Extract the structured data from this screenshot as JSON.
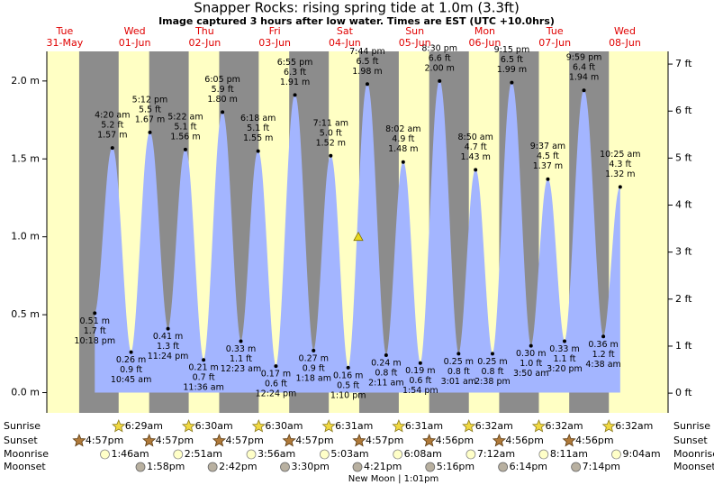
{
  "chart_data": {
    "type": "tide",
    "title": "Snapper Rocks: rising  spring tide at 1.0m (3.3ft)",
    "subtitle": "Image captured 3 hours after low water. Times are EST (UTC +10.0hrs)",
    "days": [
      {
        "weekday": "Tue",
        "date": "31-May"
      },
      {
        "weekday": "Wed",
        "date": "01-Jun"
      },
      {
        "weekday": "Thu",
        "date": "02-Jun"
      },
      {
        "weekday": "Fri",
        "date": "03-Jun"
      },
      {
        "weekday": "Sat",
        "date": "04-Jun"
      },
      {
        "weekday": "Sun",
        "date": "05-Jun"
      },
      {
        "weekday": "Mon",
        "date": "06-Jun"
      },
      {
        "weekday": "Tue",
        "date": "07-Jun"
      },
      {
        "weekday": "Wed",
        "date": "08-Jun"
      }
    ],
    "x": [
      "10:18 pm",
      "4:20 am",
      "10:45 am",
      "5:12 pm",
      "11:24 pm",
      "5:22 am",
      "11:36 am",
      "6:05 pm",
      "12:23 am",
      "6:18 am",
      "12:24 pm",
      "6:55 pm",
      "1:18 am",
      "7:11 am",
      "1:10 pm",
      "7:44 pm",
      "2:11 am",
      "8:02 am",
      "1:54 pm",
      "8:30 pm",
      "3:01 am",
      "8:50 am",
      "2:38 pm",
      "9:15 pm",
      "3:50 am",
      "9:37 am",
      "3:20 pm",
      "9:59 pm",
      "4:38 am",
      "10:25 am"
    ],
    "values": [
      0.51,
      1.57,
      0.26,
      1.67,
      0.41,
      1.56,
      0.21,
      1.8,
      0.33,
      1.55,
      0.17,
      1.91,
      0.27,
      1.52,
      0.16,
      1.98,
      0.24,
      1.48,
      0.19,
      2.0,
      0.25,
      1.43,
      0.25,
      1.99,
      0.3,
      1.37,
      0.33,
      1.94,
      0.36,
      1.32
    ],
    "value_labels": [
      "0.51 m",
      "1.57 m",
      "0.26 m",
      "1.67 m",
      "0.41 m",
      "1.56 m",
      "0.21 m",
      "1.80 m",
      "0.33 m",
      "1.55 m",
      "0.17 m",
      "1.91 m",
      "0.27 m",
      "1.52 m",
      "0.16 m",
      "1.98 m",
      "0.24 m",
      "1.48 m",
      "0.19 m",
      "2.00 m",
      "0.25 m",
      "1.43 m",
      "0.25 m",
      "1.99 m",
      "0.30 m",
      "1.37 m",
      "0.33 m",
      "1.94 m",
      "0.36 m",
      "1.32 m"
    ],
    "ft_labels": [
      "1.7 ft",
      "5.2 ft",
      "0.9 ft",
      "5.5 ft",
      "1.3 ft",
      "5.1 ft",
      "0.7 ft",
      "5.9 ft",
      "1.1 ft",
      "5.1 ft",
      "0.6 ft",
      "6.3 ft",
      "0.9 ft",
      "5.0 ft",
      "0.5 ft",
      "6.5 ft",
      "0.8 ft",
      "4.9 ft",
      "0.6 ft",
      "6.6 ft",
      "0.8 ft",
      "4.7 ft",
      "0.8 ft",
      "6.5 ft",
      "1.0 ft",
      "4.5 ft",
      "1.1 ft",
      "6.4 ft",
      "1.2 ft",
      "4.3 ft"
    ],
    "color": "#a3b5ff",
    "current_level": 1.0,
    "ylim": [
      -0.13,
      2.19
    ],
    "yticks": [
      {
        "value": 0,
        "label": "0.0 m"
      },
      {
        "value": 0.5,
        "label": "0.5 m"
      },
      {
        "value": 1,
        "label": "1.0 m"
      },
      {
        "value": 1.5,
        "label": "1.5 m"
      },
      {
        "value": 2,
        "label": "2.0 m"
      }
    ],
    "y2lim": [
      -0.42,
      7.27
    ],
    "y2ticks": [
      {
        "value": 0,
        "label": "0 ft"
      },
      {
        "value": 1,
        "label": "1 ft"
      },
      {
        "value": 2,
        "label": "2 ft"
      },
      {
        "value": 3,
        "label": "3 ft"
      },
      {
        "value": 4,
        "label": "4 ft"
      },
      {
        "value": 5,
        "label": "5 ft"
      },
      {
        "value": 6,
        "label": "6 ft"
      },
      {
        "value": 7,
        "label": "7 ft"
      }
    ],
    "row_labels": [
      "Sunrise",
      "Sunset",
      "Moonrise",
      "Moonset"
    ],
    "sunrise": [
      "6:29am",
      "6:30am",
      "6:30am",
      "6:31am",
      "6:31am",
      "6:32am",
      "6:32am",
      "6:32am"
    ],
    "sunset": [
      "4:57pm",
      "4:57pm",
      "4:57pm",
      "4:57pm",
      "4:57pm",
      "4:56pm",
      "4:56pm",
      "4:56pm"
    ],
    "moonrise": [
      "1:46am",
      "2:51am",
      "3:56am",
      "5:03am",
      "6:08am",
      "7:12am",
      "8:11am",
      "9:04am"
    ],
    "moonset": [
      "1:58pm",
      "2:42pm",
      "3:30pm",
      "4:21pm",
      "5:16pm",
      "6:14pm",
      "7:14pm"
    ],
    "moon_phase": "New Moon | 1:01pm"
  }
}
